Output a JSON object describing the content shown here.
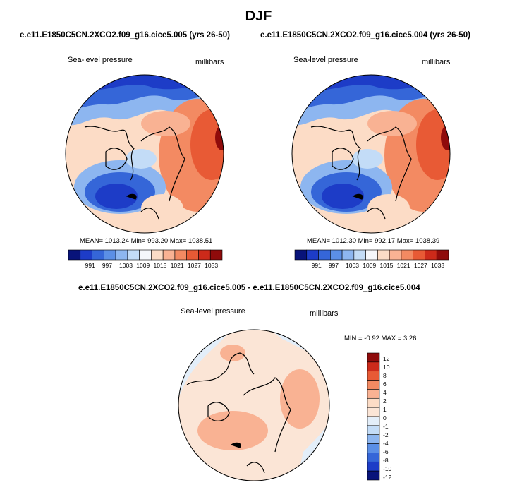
{
  "page": {
    "title": "DJF",
    "case_a": "e.e11.E1850C5CN.2XCO2.f09_g16.cice5.005 (yrs 26-50)",
    "case_b": "e.e11.E1850C5CN.2XCO2.f09_g16.cice5.004 (yrs 26-50)",
    "diff_title": "e.e11.E1850C5CN.2XCO2.f09_g16.cice5.005 - e.e11.E1850C5CN.2XCO2.f09_g16.cice5.004"
  },
  "panels": {
    "left": {
      "label": "Sea-level pressure",
      "units": "millibars",
      "stats": "MEAN= 1013.24  Min= 993.20  Max= 1038.51"
    },
    "right": {
      "label": "Sea-level pressure",
      "units": "millibars",
      "stats": "MEAN= 1012.30  Min= 992.17  Max= 1038.39"
    },
    "diff": {
      "label": "Sea-level pressure",
      "units": "millibars",
      "stats": "MIN =  -0.92 MAX =   3.26"
    }
  },
  "colors": {
    "abs": [
      "#08137a",
      "#1d3cc7",
      "#3566d8",
      "#5b8fe6",
      "#8db6f0",
      "#c3dcf7",
      "#f5f7fb",
      "#fcdcc6",
      "#f9b293",
      "#f38a62",
      "#e85a35",
      "#cc2a1a",
      "#8f0b0b"
    ],
    "diff": [
      "#08137a",
      "#1d3cc7",
      "#3566d8",
      "#5b8fe6",
      "#8db6f0",
      "#c3dcf7",
      "#e3eef9",
      "#fbe5d6",
      "#fcdcc6",
      "#f9b293",
      "#f38a62",
      "#e85a35",
      "#cc2a1a",
      "#8f0b0b"
    ]
  },
  "chart_data": [
    {
      "type": "heatmap",
      "title": "e.e11.E1850C5CN.2XCO2.f09_g16.cice5.005 (yrs 26-50)",
      "variable": "Sea-level pressure",
      "units": "millibars",
      "projection": "north polar stereographic",
      "mean": 1013.24,
      "min": 993.2,
      "max": 1038.51,
      "colorbar_levels": [
        991,
        994,
        997,
        1000,
        1003,
        1006,
        1009,
        1012,
        1015,
        1018,
        1021,
        1024,
        1027,
        1030,
        1033
      ],
      "colorbar_labels": [
        "991",
        "997",
        "1003",
        "1009",
        "1015",
        "1021",
        "1027",
        "1033"
      ]
    },
    {
      "type": "heatmap",
      "title": "e.e11.E1850C5CN.2XCO2.f09_g16.cice5.004 (yrs 26-50)",
      "variable": "Sea-level pressure",
      "units": "millibars",
      "projection": "north polar stereographic",
      "mean": 1012.3,
      "min": 992.17,
      "max": 1038.39,
      "colorbar_levels": [
        991,
        994,
        997,
        1000,
        1003,
        1006,
        1009,
        1012,
        1015,
        1018,
        1021,
        1024,
        1027,
        1030,
        1033
      ],
      "colorbar_labels": [
        "991",
        "997",
        "1003",
        "1009",
        "1015",
        "1021",
        "1027",
        "1033"
      ]
    },
    {
      "type": "heatmap",
      "title": "e.e11.E1850C5CN.2XCO2.f09_g16.cice5.005 - e.e11.E1850C5CN.2XCO2.f09_g16.cice5.004",
      "variable": "Sea-level pressure",
      "units": "millibars",
      "projection": "north polar stereographic",
      "min": -0.92,
      "max": 3.26,
      "colorbar_labels": [
        "12",
        "10",
        "8",
        "6",
        "4",
        "2",
        "1",
        "0",
        "-1",
        "-2",
        "-4",
        "-6",
        "-8",
        "-10",
        "-12"
      ]
    }
  ]
}
